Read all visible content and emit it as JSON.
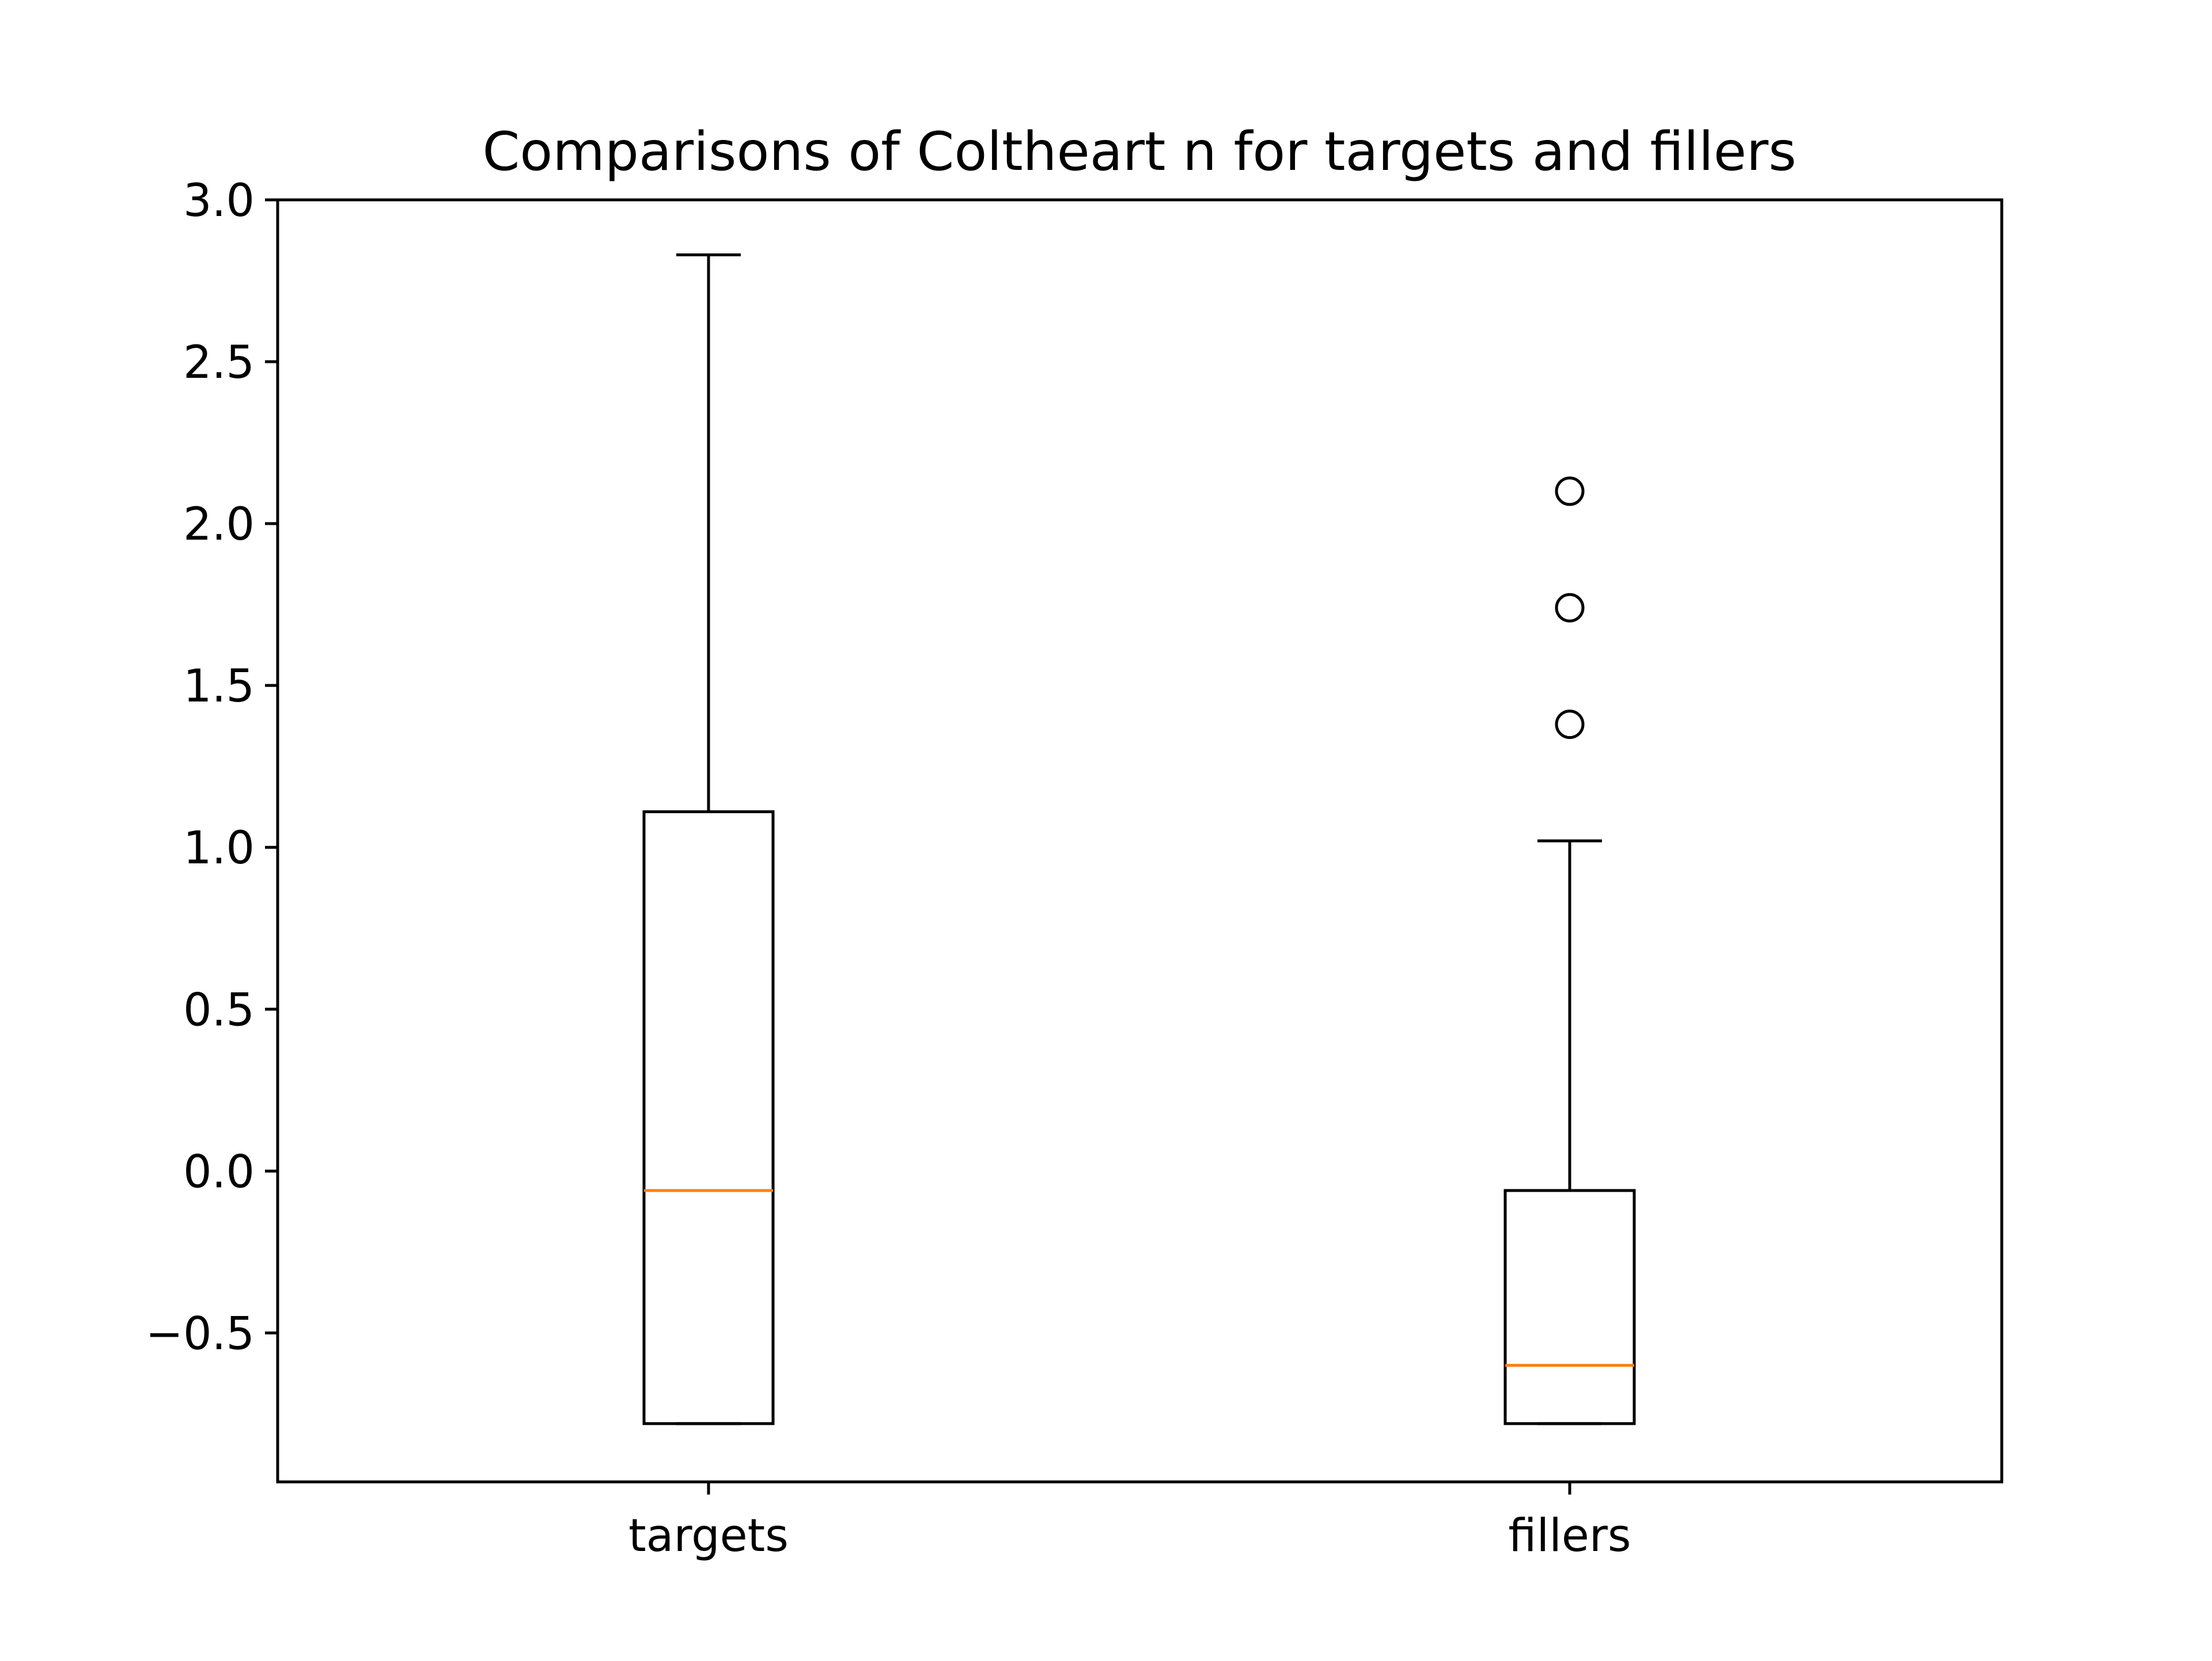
{
  "chart_data": {
    "type": "box",
    "title": "Comparisons of Coltheart n for targets and fillers",
    "xlabel": "",
    "ylabel": "",
    "categories": [
      "targets",
      "fillers"
    ],
    "ylim": [
      -0.96,
      3.0
    ],
    "yticks": [
      3.0,
      2.5,
      2.0,
      1.5,
      1.0,
      0.5,
      0.0,
      -0.5
    ],
    "ytick_labels": [
      "3.0",
      "2.5",
      "2.0",
      "1.5",
      "1.0",
      "0.5",
      "0.0",
      "−0.5"
    ],
    "grid": false,
    "boxes": [
      {
        "name": "targets",
        "whisker_low": -0.78,
        "q1": -0.78,
        "median": -0.06,
        "q3": 1.11,
        "whisker_high": 2.83,
        "outliers": []
      },
      {
        "name": "fillers",
        "whisker_low": -0.78,
        "q1": -0.78,
        "median": -0.6,
        "q3": -0.06,
        "whisker_high": 1.02,
        "outliers": [
          1.38,
          1.74,
          2.1
        ]
      }
    ],
    "colors": {
      "box": "#000000",
      "median": "#ff7f0e",
      "background": "#ffffff"
    }
  }
}
